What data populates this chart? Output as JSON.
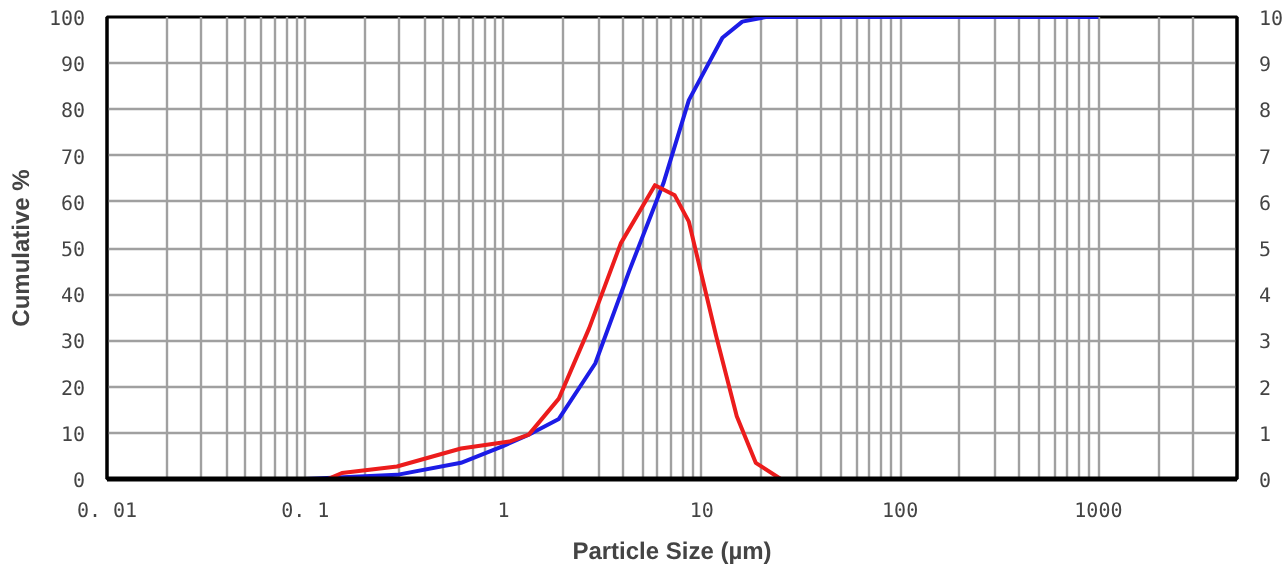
{
  "chart_data": {
    "type": "line",
    "xlabel": "Particle Size (µm)",
    "ylabel": "Cumulative %",
    "log": "x",
    "grid": true,
    "marker": "none",
    "line_style": "solid",
    "xlim": [
      0.01,
      5000
    ],
    "xticks": [
      {
        "value": 0.01,
        "label": "0. 01"
      },
      {
        "value": 0.02,
        "label": null
      },
      {
        "value": 0.03,
        "label": null
      },
      {
        "value": 0.04,
        "label": null
      },
      {
        "value": 0.05,
        "label": null
      },
      {
        "value": 0.06,
        "label": null
      },
      {
        "value": 0.07,
        "label": null
      },
      {
        "value": 0.08,
        "label": null
      },
      {
        "value": 0.09,
        "label": null
      },
      {
        "value": 0.1,
        "label": "0. 1"
      },
      {
        "value": 0.2,
        "label": null
      },
      {
        "value": 0.3,
        "label": null
      },
      {
        "value": 0.4,
        "label": null
      },
      {
        "value": 0.5,
        "label": null
      },
      {
        "value": 0.6,
        "label": null
      },
      {
        "value": 0.7,
        "label": null
      },
      {
        "value": 0.8,
        "label": null
      },
      {
        "value": 0.9,
        "label": null
      },
      1,
      {
        "value": 2,
        "label": null
      },
      {
        "value": 3,
        "label": null
      },
      {
        "value": 4,
        "label": null
      },
      {
        "value": 5,
        "label": null
      },
      {
        "value": 6,
        "label": null
      },
      {
        "value": 7,
        "label": null
      },
      {
        "value": 8,
        "label": null
      },
      {
        "value": 9,
        "label": null
      },
      10,
      {
        "value": 20,
        "label": null
      },
      {
        "value": 30,
        "label": null
      },
      {
        "value": 40,
        "label": null
      },
      {
        "value": 50,
        "label": null
      },
      {
        "value": 60,
        "label": null
      },
      {
        "value": 70,
        "label": null
      },
      {
        "value": 80,
        "label": null
      },
      {
        "value": 90,
        "label": null
      },
      100,
      {
        "value": 200,
        "label": null
      },
      {
        "value": 300,
        "label": null
      },
      {
        "value": 400,
        "label": null
      },
      {
        "value": 500,
        "label": null
      },
      {
        "value": 600,
        "label": null
      },
      {
        "value": 700,
        "label": null
      },
      {
        "value": 800,
        "label": null
      },
      {
        "value": 900,
        "label": null
      },
      1000,
      {
        "value": 2000,
        "label": null
      },
      {
        "value": 3000,
        "label": null
      }
    ],
    "ylim": [
      0,
      100
    ],
    "yticks": [
      0,
      10,
      20,
      30,
      40,
      50,
      60,
      70,
      80,
      90,
      100
    ],
    "y2lim": [
      0,
      10
    ],
    "y2ticks": [
      0,
      1,
      2,
      3,
      4,
      5,
      6,
      7,
      8,
      9,
      10
    ],
    "series": [
      {
        "color": "#1c1ce6",
        "x": [
          0.1,
          0.29,
          0.61,
          0.98,
          1.34,
          1.9,
          2.9,
          4.3,
          6.4,
          8.6,
          12.7,
          16,
          21,
          1000
        ],
        "values": [
          0,
          0.9,
          3.5,
          7,
          9.6,
          13,
          25,
          45,
          64,
          82,
          95.5,
          99,
          100,
          100
        ]
      },
      {
        "color": "#ec1c1c",
        "axis": "y2",
        "x": [
          0.13,
          0.153,
          0.29,
          0.61,
          1.07,
          1.34,
          1.9,
          2.7,
          3.9,
          5.8,
          7.3,
          8.6,
          11.8,
          15,
          18.7,
          25,
          1000
        ],
        "values": [
          0,
          0.13,
          0.27,
          0.66,
          0.81,
          0.96,
          1.74,
          3.26,
          5.1,
          6.36,
          6.14,
          5.57,
          3.1,
          1.36,
          0.35,
          0,
          0
        ]
      }
    ]
  }
}
